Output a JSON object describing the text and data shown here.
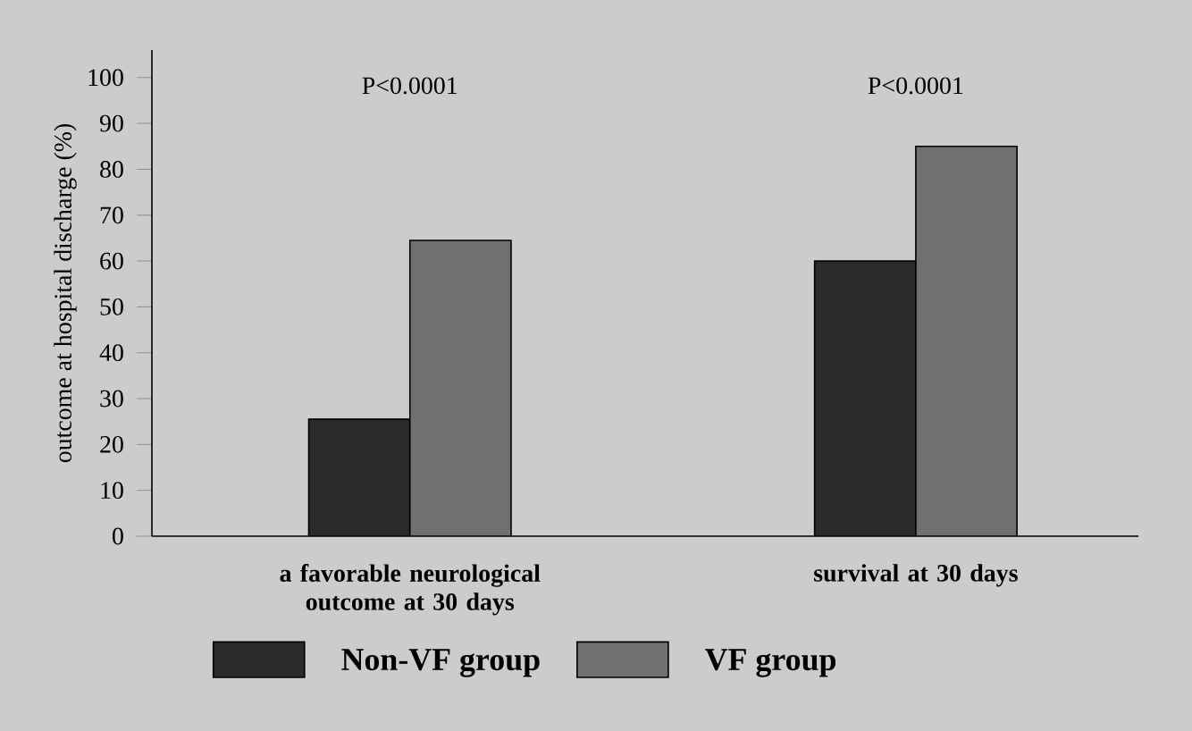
{
  "chart_data": {
    "type": "bar",
    "ylabel": "outcome at hospital discharge  (%)",
    "categories": [
      "a favorable neurological outcome at 30 days",
      "survival at 30 days"
    ],
    "series": [
      {
        "name": "Non-VF group",
        "color": "#2a2a2a",
        "values": [
          25.5,
          60
        ]
      },
      {
        "name": "VF group",
        "color": "#707070",
        "values": [
          64.5,
          85
        ]
      }
    ],
    "ylim": [
      0,
      106
    ],
    "yticks": [
      0,
      10,
      20,
      30,
      40,
      50,
      60,
      70,
      80,
      90,
      100
    ],
    "annotations": [
      "P<0.0001",
      "P<0.0001"
    ],
    "legend": "bottom left"
  }
}
